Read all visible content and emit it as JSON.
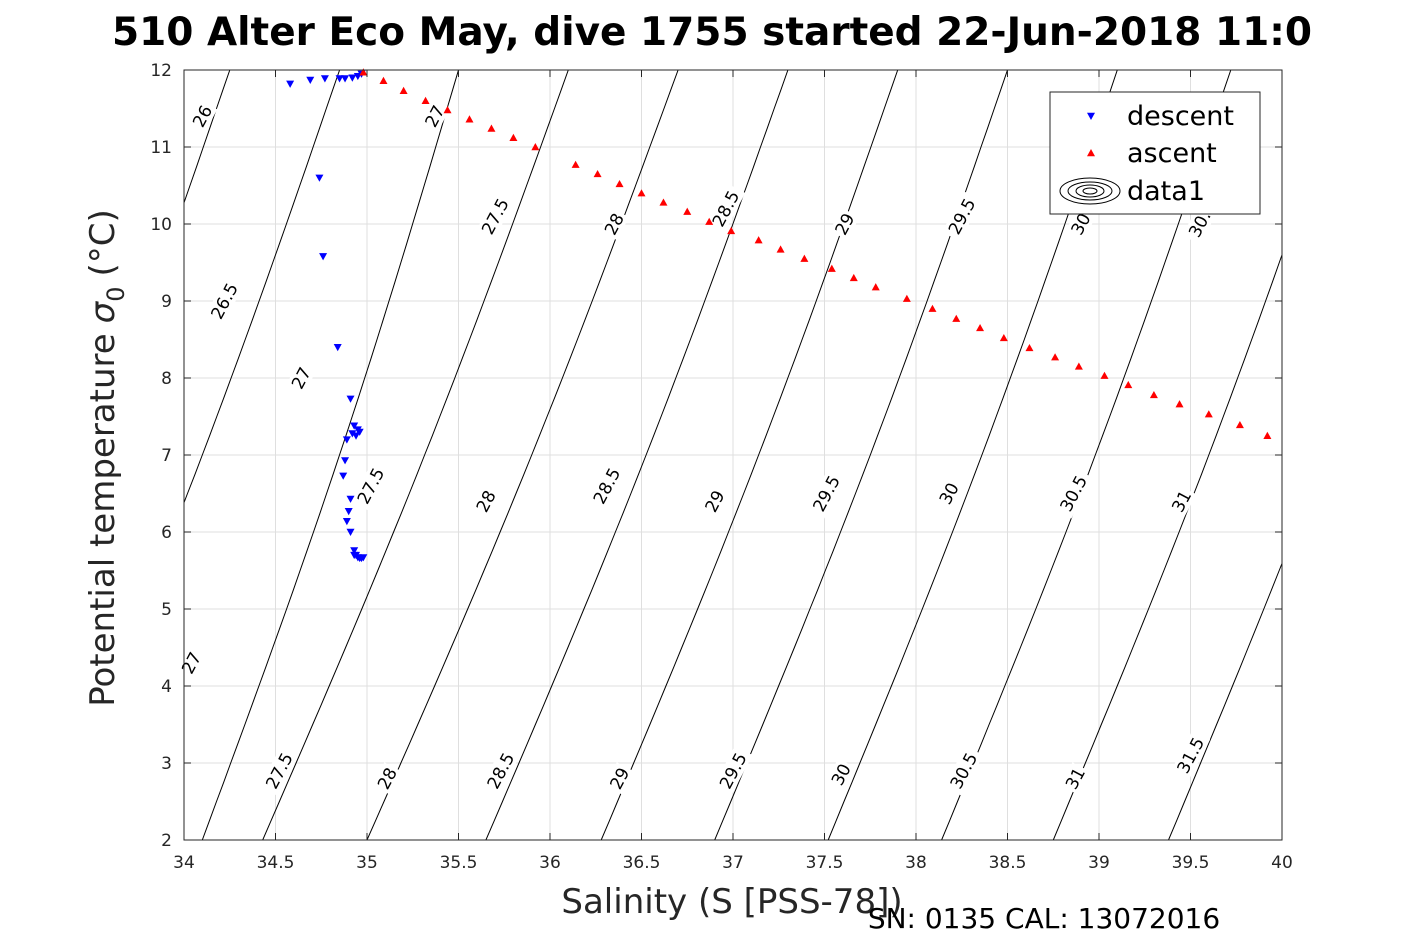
{
  "chart_data": {
    "type": "scatter",
    "title": "510 Alter Eco May, dive 1755 started 22-Jun-2018 11:0",
    "xlabel": "Salinity (S [PSS-78])",
    "ylabel": "Potential temperature σ 0 (°C)",
    "ylabel_main": "Potential temperature",
    "ylabel_symbol": "σ",
    "ylabel_sub": "0",
    "ylabel_unit": "(°C)",
    "xlim": [
      34,
      40
    ],
    "ylim": [
      2,
      12
    ],
    "grid": true,
    "legend_position": "top-right",
    "xticks": [
      "34",
      "34.5",
      "35",
      "35.5",
      "36",
      "36.5",
      "37",
      "37.5",
      "38",
      "38.5",
      "39",
      "39.5",
      "40"
    ],
    "yticks": [
      "2",
      "3",
      "4",
      "5",
      "6",
      "7",
      "8",
      "9",
      "10",
      "11",
      "12"
    ],
    "series": [
      {
        "name": "descent",
        "marker": "triangle-down",
        "color": "#0000ff",
        "x": [
          34.58,
          34.69,
          34.77,
          34.85,
          34.88,
          34.92,
          34.95,
          34.97,
          34.74,
          34.76,
          34.84,
          34.91,
          34.93,
          34.95,
          34.92,
          34.89,
          34.94,
          34.96,
          34.88,
          34.87,
          34.91,
          34.9,
          34.89,
          34.91,
          34.93,
          34.94,
          34.95,
          34.96,
          34.97,
          34.98,
          34.93
        ],
        "y": [
          11.82,
          11.87,
          11.89,
          11.89,
          11.89,
          11.9,
          11.92,
          11.95,
          10.6,
          9.58,
          8.4,
          7.73,
          7.38,
          7.33,
          7.28,
          7.2,
          7.25,
          7.3,
          6.93,
          6.73,
          6.43,
          6.27,
          6.14,
          6.0,
          5.76,
          5.7,
          5.67,
          5.66,
          5.66,
          5.67,
          5.7
        ]
      },
      {
        "name": "ascent",
        "marker": "triangle-up",
        "color": "#ff0000",
        "x": [
          34.98,
          35.09,
          35.2,
          35.32,
          35.44,
          35.56,
          35.68,
          35.8,
          35.92,
          36.14,
          36.26,
          36.38,
          36.5,
          36.62,
          36.75,
          36.87,
          36.99,
          37.14,
          37.26,
          37.39,
          37.54,
          37.66,
          37.78,
          37.95,
          38.09,
          38.22,
          38.35,
          38.48,
          38.62,
          38.76,
          38.89,
          39.03,
          39.16,
          39.3,
          39.44,
          39.6,
          39.77,
          39.92
        ],
        "y": [
          11.97,
          11.86,
          11.73,
          11.6,
          11.48,
          11.36,
          11.24,
          11.12,
          11.0,
          10.77,
          10.65,
          10.52,
          10.4,
          10.28,
          10.16,
          10.03,
          9.91,
          9.79,
          9.67,
          9.55,
          9.42,
          9.3,
          9.18,
          9.03,
          8.9,
          8.77,
          8.65,
          8.52,
          8.39,
          8.27,
          8.15,
          8.03,
          7.91,
          7.78,
          7.66,
          7.53,
          7.39,
          7.25
        ]
      },
      {
        "name": "data1",
        "marker": "contour",
        "color": "#000000"
      }
    ],
    "contours": {
      "color": "#000000",
      "levels": [
        {
          "level": 26,
          "label": "26",
          "x_at_T12": 34.25,
          "x_at_T2": null
        },
        {
          "level": 26.5,
          "label": "26.5",
          "x_at_T12": 34.85,
          "x_at_T2": null
        },
        {
          "level": 27,
          "label": "27",
          "x_at_T12": 35.5,
          "x_at_T2": 34.1
        },
        {
          "level": 27.5,
          "label": "27.5",
          "x_at_T12": 36.1,
          "x_at_T2": 34.43
        },
        {
          "level": 28,
          "label": "28",
          "x_at_T12": 36.7,
          "x_at_T2": 35.0
        },
        {
          "level": 28.5,
          "label": "28.5",
          "x_at_T12": 37.3,
          "x_at_T2": 35.65
        },
        {
          "level": 29,
          "label": "29",
          "x_at_T12": 37.9,
          "x_at_T2": 36.28
        },
        {
          "level": 29.5,
          "label": "29.5",
          "x_at_T12": 38.5,
          "x_at_T2": 36.9
        },
        {
          "level": 30,
          "label": "30",
          "x_at_T12": 39.1,
          "x_at_T2": 37.52
        },
        {
          "level": 30.5,
          "label": "30.5",
          "x_at_T12": 39.72,
          "x_at_T2": 38.14
        },
        {
          "level": 31,
          "label": "31",
          "x_at_T12": null,
          "x_at_T2": 38.75
        },
        {
          "level": 31.5,
          "label": "31.5",
          "x_at_T12": null,
          "x_at_T2": 39.38
        }
      ],
      "labels": [
        {
          "text": "26",
          "x": 34.1,
          "y": 11.4
        },
        {
          "text": "26.5",
          "x": 34.22,
          "y": 9.0
        },
        {
          "text": "27",
          "x": 34.64,
          "y": 8.0
        },
        {
          "text": "27",
          "x": 35.37,
          "y": 11.4
        },
        {
          "text": "27",
          "x": 34.04,
          "y": 4.3
        },
        {
          "text": "27.5",
          "x": 35.7,
          "y": 10.1
        },
        {
          "text": "27.5",
          "x": 35.02,
          "y": 6.6
        },
        {
          "text": "27.5",
          "x": 34.52,
          "y": 2.9
        },
        {
          "text": "28",
          "x": 36.35,
          "y": 10.0
        },
        {
          "text": "28",
          "x": 35.65,
          "y": 6.4
        },
        {
          "text": "28",
          "x": 35.11,
          "y": 2.8
        },
        {
          "text": "28.5",
          "x": 36.96,
          "y": 10.2
        },
        {
          "text": "28.5",
          "x": 36.31,
          "y": 6.6
        },
        {
          "text": "28.5",
          "x": 35.73,
          "y": 2.9
        },
        {
          "text": "29",
          "x": 37.61,
          "y": 10.0
        },
        {
          "text": "29",
          "x": 36.9,
          "y": 6.4
        },
        {
          "text": "29",
          "x": 36.38,
          "y": 2.8
        },
        {
          "text": "29.5",
          "x": 38.25,
          "y": 10.1
        },
        {
          "text": "29.5",
          "x": 37.51,
          "y": 6.5
        },
        {
          "text": "29.5",
          "x": 37.0,
          "y": 2.9
        },
        {
          "text": "30",
          "x": 38.9,
          "y": 10.0
        },
        {
          "text": "30",
          "x": 38.18,
          "y": 6.5
        },
        {
          "text": "30",
          "x": 37.59,
          "y": 2.85
        },
        {
          "text": "30.",
          "x": 39.55,
          "y": 10.0
        },
        {
          "text": "30.5",
          "x": 38.86,
          "y": 6.5
        },
        {
          "text": "30.5",
          "x": 38.26,
          "y": 2.9
        },
        {
          "text": "31",
          "x": 39.45,
          "y": 6.4
        },
        {
          "text": "31",
          "x": 38.87,
          "y": 2.8
        },
        {
          "text": "31.5",
          "x": 39.5,
          "y": 3.1
        }
      ]
    }
  },
  "footer": {
    "text": "SN: 0135  CAL: 13072016"
  }
}
